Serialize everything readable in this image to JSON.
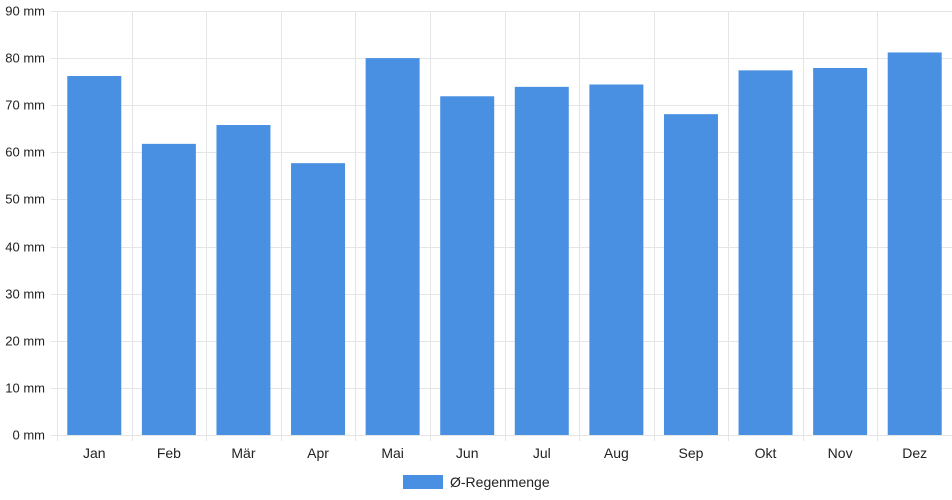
{
  "chart_data": {
    "type": "bar",
    "categories": [
      "Jan",
      "Feb",
      "Mär",
      "Apr",
      "Mai",
      "Jun",
      "Jul",
      "Aug",
      "Sep",
      "Okt",
      "Nov",
      "Dez"
    ],
    "series": [
      {
        "name": "Ø-Regenmenge",
        "values": [
          76.2,
          61.8,
          65.8,
          57.7,
          80.0,
          71.9,
          73.9,
          74.4,
          68.1,
          77.4,
          77.9,
          81.2
        ]
      }
    ],
    "ylim": [
      0,
      90
    ],
    "yticks": [
      0,
      10,
      20,
      30,
      40,
      50,
      60,
      70,
      80,
      90
    ],
    "ytick_unit": "mm",
    "grid": true,
    "legend_position": "bottom",
    "colors": {
      "bar": "#4a90e2",
      "grid": "#e5e5e5",
      "text": "#222222"
    }
  }
}
